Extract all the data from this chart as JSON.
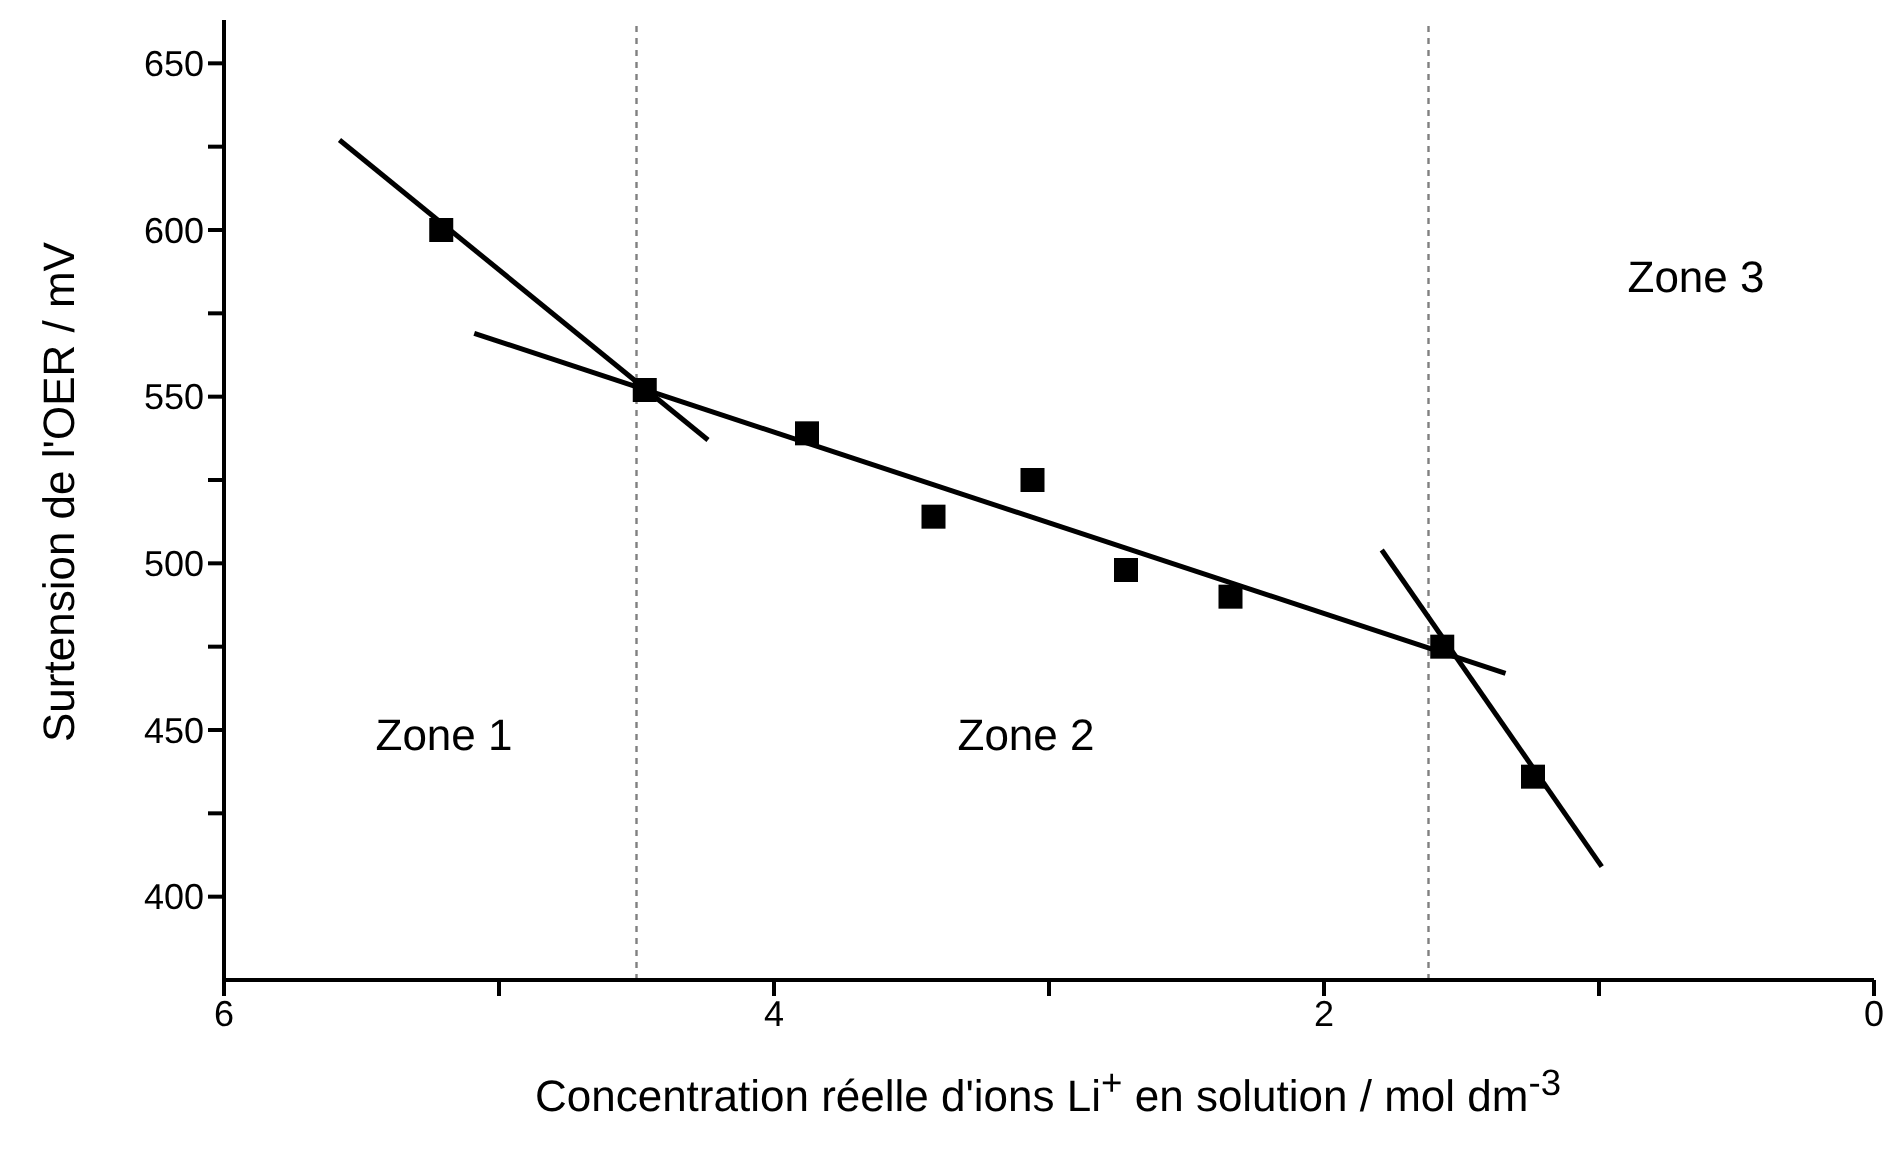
{
  "chart_data": {
    "type": "scatter",
    "xlabel": "Concentration réelle d'ions Li$^{+}$ en solution / mol dm$^{-3}$",
    "ylabel": "Surtension de l'OER / mV",
    "xlim": [
      6,
      0
    ],
    "xticks": [
      6,
      {
        "value": 5,
        "label": null
      },
      4,
      {
        "value": 3,
        "label": null
      },
      2,
      {
        "value": 1,
        "label": null
      },
      0
    ],
    "ylim": [
      375,
      663
    ],
    "yticks": [
      400,
      {
        "value": 425,
        "label": null
      },
      450,
      {
        "value": 475,
        "label": null
      },
      500,
      {
        "value": 525,
        "label": null
      },
      550,
      {
        "value": 575,
        "label": null
      },
      600,
      {
        "value": 625,
        "label": null
      },
      650
    ],
    "grid": false,
    "legend": false,
    "series": [
      {
        "color": "#000000",
        "marker": "square",
        "x": [
          5.21,
          4.47,
          3.88,
          3.42,
          3.06,
          2.72,
          2.34,
          1.57,
          1.24
        ],
        "values": [
          600,
          552,
          539,
          514,
          525,
          498,
          490,
          475,
          436
        ]
      },
      {
        "type": "line",
        "color": "#000000",
        "line_style": "solid",
        "marker": "none",
        "x": [
          5.58,
          4.24
        ],
        "values": [
          627,
          537
        ]
      },
      {
        "type": "line",
        "color": "#000000",
        "line_style": "solid",
        "marker": "none",
        "x": [
          5.09,
          1.34
        ],
        "values": [
          569,
          467
        ]
      },
      {
        "type": "line",
        "color": "#000000",
        "line_style": "solid",
        "marker": "none",
        "x": [
          1.79,
          0.99
        ],
        "values": [
          504,
          409
        ]
      }
    ],
    "ref_lines": [
      {
        "axis": "x",
        "value": 4.5,
        "color": "#808080",
        "line_style": "dotted"
      },
      {
        "axis": "x",
        "value": 1.62,
        "color": "#808080",
        "line_style": "dotted"
      }
    ],
    "annotations": [
      "Zone 1",
      "Zone 2",
      "Zone 3"
    ]
  }
}
